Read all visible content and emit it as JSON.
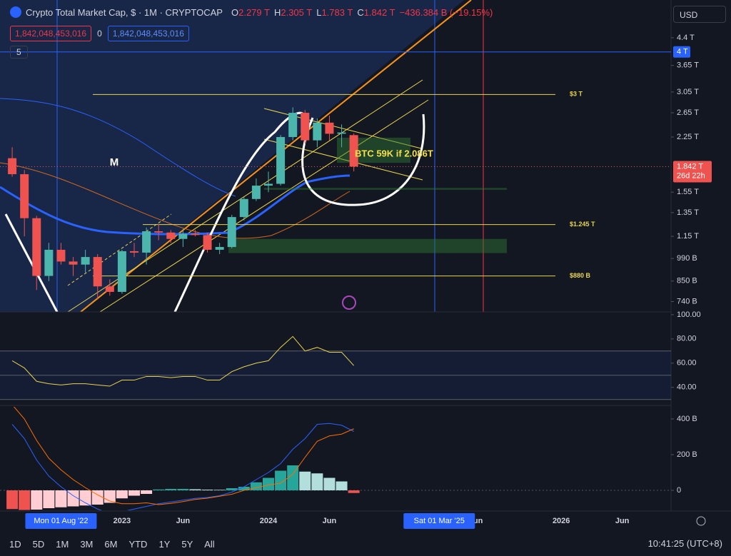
{
  "header": {
    "title": "Crypto Total Market Cap, $ · 1M · CRYPTOCAP",
    "ohlc": [
      {
        "key": "O",
        "value": "2.279 T"
      },
      {
        "key": "H",
        "value": "2.305 T"
      },
      {
        "key": "L",
        "value": "1.783 T"
      },
      {
        "key": "C",
        "value": "1.842 T"
      }
    ],
    "change": "−436.384 B (−19.15%)",
    "sell": "1,842,048,453,016",
    "spread": "0",
    "buy": "1,842,048,453,016",
    "indicators": "5",
    "currency": "USD"
  },
  "toolbar": {
    "ranges": [
      "1D",
      "5D",
      "1M",
      "3M",
      "6M",
      "YTD",
      "1Y",
      "5Y",
      "All"
    ],
    "clock": "10:41:25 (UTC+8)"
  },
  "chart_data": [
    {
      "type": "candlestick",
      "log_scale": true,
      "x": [
        "2022-04",
        "2022-05",
        "2022-06",
        "2022-07",
        "2022-08",
        "2022-09",
        "2022-10",
        "2022-11",
        "2022-12",
        "2023-01",
        "2023-02",
        "2023-03",
        "2023-04",
        "2023-05",
        "2023-06",
        "2023-07",
        "2023-08",
        "2023-09",
        "2023-10",
        "2023-11",
        "2023-12",
        "2024-01",
        "2024-02",
        "2024-03",
        "2024-04",
        "2024-05",
        "2024-06",
        "2024-07",
        "2024-08"
      ],
      "open": [
        1.95,
        1.75,
        1.3,
        0.88,
        1.05,
        0.97,
        0.95,
        1.0,
        0.82,
        0.79,
        1.04,
        1.03,
        1.19,
        1.18,
        1.13,
        1.17,
        1.16,
        1.05,
        1.07,
        1.31,
        1.48,
        1.62,
        1.64,
        2.25,
        2.65,
        2.2,
        2.48,
        2.3,
        2.279
      ],
      "high": [
        2.1,
        1.8,
        1.32,
        1.1,
        1.1,
        1.0,
        1.05,
        1.02,
        0.86,
        1.05,
        1.1,
        1.22,
        1.25,
        1.2,
        1.21,
        1.2,
        1.18,
        1.1,
        1.33,
        1.5,
        1.7,
        1.78,
        2.28,
        2.75,
        2.7,
        2.55,
        2.6,
        2.45,
        2.305
      ],
      "low": [
        1.72,
        1.15,
        0.8,
        0.85,
        0.95,
        0.88,
        0.9,
        0.75,
        0.77,
        0.78,
        1.0,
        0.95,
        1.12,
        1.1,
        1.07,
        1.15,
        1.03,
        1.02,
        1.06,
        1.28,
        1.46,
        1.55,
        1.62,
        2.2,
        2.15,
        2.1,
        2.2,
        2.1,
        1.783
      ],
      "close": [
        1.75,
        1.3,
        0.88,
        1.05,
        0.97,
        0.95,
        1.0,
        0.82,
        0.79,
        1.04,
        1.03,
        1.19,
        1.18,
        1.13,
        1.17,
        1.16,
        1.05,
        1.07,
        1.31,
        1.48,
        1.62,
        1.64,
        2.25,
        2.65,
        2.2,
        2.48,
        2.3,
        2.32,
        1.842
      ],
      "up_color": "#4db6ac",
      "down_color": "#ef5350",
      "xlim": [
        "2022-03",
        "2026-10"
      ],
      "xticks": [
        {
          "value": "2023-01",
          "label": "2023"
        },
        {
          "value": "2023-06",
          "label": "Jun"
        },
        {
          "value": "2024-01",
          "label": "2024"
        },
        {
          "value": "2024-06",
          "label": "Jun"
        },
        {
          "value": "2025-06",
          "label": "Jun"
        },
        {
          "value": "2026-01",
          "label": "2026"
        },
        {
          "value": "2026-06",
          "label": "Jun"
        }
      ],
      "crosshair_labels": [
        {
          "value": "2022-08",
          "label": "Mon 01 Aug '22"
        },
        {
          "value": "2025-03",
          "label": "Sat 01 Mar '25"
        }
      ],
      "ylim": [
        0.69,
        5.68
      ],
      "yticks": [
        {
          "value": 4.4,
          "label": "4.4 T"
        },
        {
          "value": 3.65,
          "label": "3.65 T"
        },
        {
          "value": 3.05,
          "label": "3.05 T"
        },
        {
          "value": 2.65,
          "label": "2.65 T"
        },
        {
          "value": 2.25,
          "label": "2.25 T"
        },
        {
          "value": 1.55,
          "label": "1.55 T"
        },
        {
          "value": 1.35,
          "label": "1.35 T"
        },
        {
          "value": 1.15,
          "label": "1.15 T"
        },
        {
          "value": 0.99,
          "label": "990 B"
        },
        {
          "value": 0.85,
          "label": "850 B"
        },
        {
          "value": 0.74,
          "label": "740 B"
        }
      ],
      "price_label": {
        "value": 1.842,
        "label": "1.842 T",
        "countdown": "26d 22h"
      },
      "marker_label": {
        "value": 4,
        "label": "4 T"
      },
      "levels": [
        {
          "value": 3,
          "label": "$3 T"
        },
        {
          "value": 1.245,
          "label": "$1.245 T"
        },
        {
          "value": 0.88,
          "label": "$880 B"
        }
      ],
      "zones": [
        [
          1.89,
          2.24
        ],
        [
          1.027,
          1.13
        ],
        [
          1.575,
          1.595
        ]
      ],
      "annotations": [
        {
          "text": "M"
        },
        {
          "text": "BTC 59K if 2.086T"
        }
      ]
    },
    {
      "type": "line",
      "color": "#e8d44d",
      "values": [
        62,
        56,
        45,
        43,
        42,
        43,
        43,
        42,
        41,
        46,
        46,
        49,
        49,
        48,
        49,
        49,
        46,
        46,
        53,
        57,
        60,
        62,
        73,
        82,
        70,
        73,
        69,
        69,
        58
      ],
      "ylim": [
        25.7,
        101.7
      ],
      "yticks": [
        {
          "value": 100,
          "label": "100.00"
        },
        {
          "value": 80,
          "label": "80.00"
        },
        {
          "value": 60,
          "label": "60.00"
        },
        {
          "value": 40,
          "label": "40.00"
        }
      ],
      "bands": [
        70,
        50,
        30
      ]
    },
    {
      "type": "bar",
      "values": [
        -105,
        -110,
        -108,
        -100,
        -95,
        -90,
        -85,
        -80,
        -70,
        -45,
        -30,
        -20,
        5,
        8,
        8,
        6,
        4,
        3,
        12,
        20,
        45,
        70,
        110,
        140,
        105,
        95,
        70,
        50,
        -15
      ],
      "up_color": "#26a69a",
      "up_fading_color": "#b2dfdb",
      "down_color": "#ef5350",
      "down_fading_color": "#ffcdd2",
      "lines": [
        {
          "color": "#2962ff",
          "values": [
            370,
            290,
            170,
            80,
            20,
            -30,
            -70,
            -105,
            -130,
            -120,
            -105,
            -90,
            -75,
            -65,
            -55,
            -45,
            -40,
            -30,
            -10,
            20,
            60,
            100,
            150,
            230,
            290,
            370,
            375,
            365,
            330
          ]
        },
        {
          "color": "#ff6d00",
          "values": [
            480,
            400,
            280,
            180,
            115,
            60,
            15,
            -25,
            -60,
            -75,
            -75,
            -70,
            -80,
            -73,
            -63,
            -51,
            -44,
            -33,
            -22,
            0,
            15,
            30,
            40,
            90,
            185,
            275,
            305,
            315,
            345
          ]
        }
      ],
      "ylim": [
        -112,
        468
      ],
      "yticks": [
        {
          "value": 400,
          "label": "400 B"
        },
        {
          "value": 200,
          "label": "200 B"
        },
        0
      ]
    }
  ]
}
